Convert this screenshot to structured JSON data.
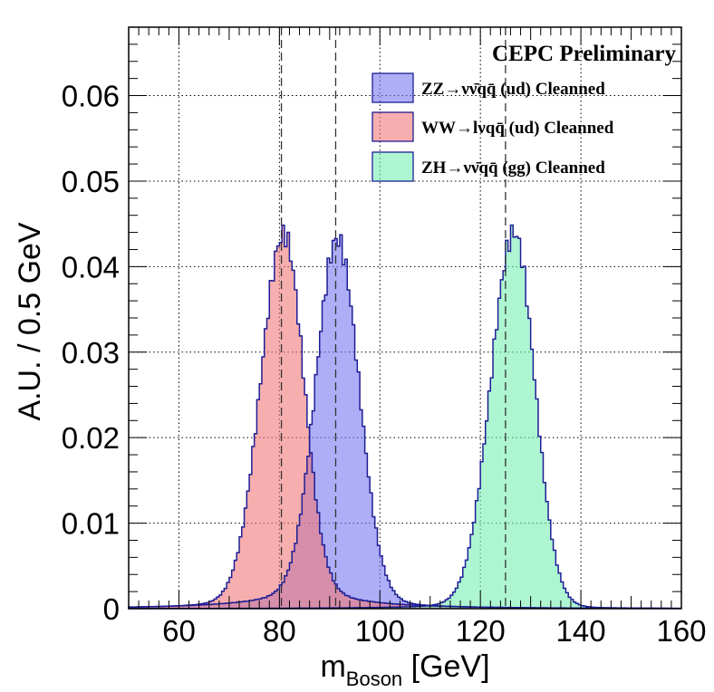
{
  "chart_data": {
    "type": "histogram",
    "title": "",
    "annotation": "CEPC Preliminary",
    "xlabel_main": "m",
    "xlabel_sub": "Boson",
    "xlabel_unit": " [GeV]",
    "ylabel": "A.U. / 0.5 GeV",
    "xlim": [
      50,
      160
    ],
    "ylim": [
      0,
      0.068
    ],
    "bin_width": 0.5,
    "xticks": [
      60,
      80,
      100,
      120,
      140,
      160
    ],
    "xtick_labels": [
      "60",
      "80",
      "100",
      "120",
      "140",
      "160"
    ],
    "yticks": [
      0,
      0.01,
      0.02,
      0.03,
      0.04,
      0.05,
      0.06
    ],
    "ytick_labels": [
      "0",
      "0.01",
      "0.02",
      "0.03",
      "0.04",
      "0.05",
      "0.06"
    ],
    "grid": true,
    "legend_position": "top-right",
    "reference_lines": [
      80.4,
      91.2,
      125.0
    ],
    "series": [
      {
        "name": "ZZ→νν̄qq̄ (ud) Cleanned",
        "color": "#7878f0",
        "edge_color": "#1e1e96",
        "peak_x": 91.5,
        "peak_y": 0.0432,
        "sigma_left": 4.2,
        "sigma_right": 4.3,
        "tail_left": 0.0028,
        "tail_right": 0.0012
      },
      {
        "name": "WW→lνqq̄ (ud) Cleanned",
        "color": "#f07878",
        "edge_color": "#1e1e96",
        "peak_x": 80.9,
        "peak_y": 0.0438,
        "sigma_left": 4.6,
        "sigma_right": 3.9,
        "tail_left": 0.0012,
        "tail_right": 0.0028
      },
      {
        "name": "ZH→νν̄qq̄ (gg) Cleanned",
        "color": "#78f0b4",
        "edge_color": "#1e1e96",
        "peak_x": 126.7,
        "peak_y": 0.044,
        "sigma_left": 4.6,
        "sigma_right": 4.1,
        "tail_left": 0.0008,
        "tail_right": 0.0004
      }
    ]
  }
}
